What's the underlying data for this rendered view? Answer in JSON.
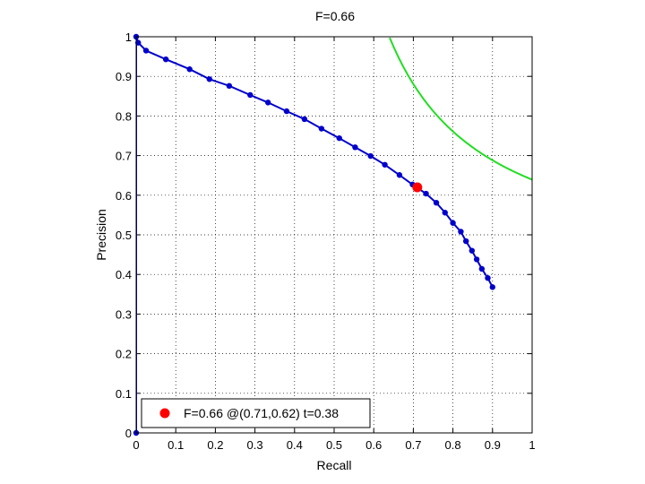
{
  "chart_data": {
    "type": "line",
    "title": "F=0.66",
    "xlabel": "Recall",
    "ylabel": "Precision",
    "xlim": [
      0,
      1
    ],
    "ylim": [
      0,
      1
    ],
    "grid": true,
    "xticks": [
      "0",
      "0.1",
      "0.2",
      "0.3",
      "0.4",
      "0.5",
      "0.6",
      "0.7",
      "0.8",
      "0.9",
      "1"
    ],
    "yticks": [
      "0",
      "0.1",
      "0.2",
      "0.3",
      "0.4",
      "0.5",
      "0.6",
      "0.7",
      "0.8",
      "0.9",
      "1"
    ],
    "legend_position": "bottom-left",
    "series": [
      {
        "color": "#0000cc",
        "points": [
          [
            0,
            0
          ],
          [
            0,
            1
          ],
          [
            0.005,
            0.985
          ],
          [
            0.025,
            0.965
          ],
          [
            0.075,
            0.943
          ],
          [
            0.135,
            0.918
          ],
          [
            0.185,
            0.893
          ],
          [
            0.235,
            0.876
          ],
          [
            0.288,
            0.853
          ],
          [
            0.333,
            0.834
          ],
          [
            0.38,
            0.812
          ],
          [
            0.425,
            0.792
          ],
          [
            0.468,
            0.768
          ],
          [
            0.513,
            0.744
          ],
          [
            0.553,
            0.721
          ],
          [
            0.592,
            0.699
          ],
          [
            0.628,
            0.677
          ],
          [
            0.665,
            0.651
          ],
          [
            0.698,
            0.627
          ],
          [
            0.732,
            0.604
          ],
          [
            0.758,
            0.581
          ],
          [
            0.78,
            0.556
          ],
          [
            0.8,
            0.53
          ],
          [
            0.82,
            0.508
          ],
          [
            0.833,
            0.484
          ],
          [
            0.848,
            0.46
          ],
          [
            0.86,
            0.438
          ],
          [
            0.873,
            0.414
          ],
          [
            0.888,
            0.391
          ],
          [
            0.9,
            0.368
          ]
        ]
      },
      {
        "color": "#22dd22",
        "iso_f": 0.78
      }
    ],
    "highlight": {
      "recall": 0.71,
      "precision": 0.62,
      "color": "#ff0000",
      "label": "F=0.66 @(0.71,0.62) t=0.38"
    }
  }
}
